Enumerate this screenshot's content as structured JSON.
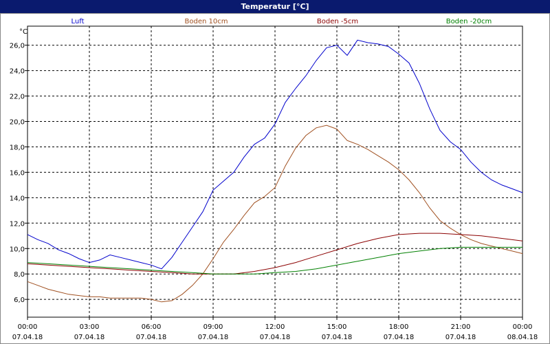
{
  "window": {
    "title": "Temperatur [°C]"
  },
  "chart_data": {
    "type": "line",
    "title": "Temperatur [°C]",
    "ylabel": "°C",
    "xlabel": "",
    "ylim": [
      4.6,
      27.5
    ],
    "xlim": [
      0,
      24
    ],
    "yticks": [
      6.0,
      8.0,
      10.0,
      12.0,
      14.0,
      16.0,
      18.0,
      20.0,
      22.0,
      24.0,
      26.0
    ],
    "ytick_labels": [
      "6,0",
      "8,0",
      "10,0",
      "12,0",
      "14,0",
      "16,0",
      "18,0",
      "20,0",
      "22,0",
      "24,0",
      "26,0"
    ],
    "xticks": [
      0,
      3,
      6,
      9,
      12,
      15,
      18,
      21,
      24
    ],
    "xtick_time": [
      "00:00",
      "03:00",
      "06:00",
      "09:00",
      "12:00",
      "15:00",
      "18:00",
      "21:00",
      "00:00"
    ],
    "xtick_date": [
      "07.04.18",
      "07.04.18",
      "07.04.18",
      "07.04.18",
      "07.04.18",
      "07.04.18",
      "07.04.18",
      "07.04.18",
      "08.04.18"
    ],
    "grid": true,
    "legend_position": "top",
    "series": [
      {
        "name": "Luft",
        "color": "#0000cc",
        "x": [
          0,
          0.5,
          1,
          1.5,
          2,
          2.5,
          3,
          3.5,
          4,
          4.5,
          5,
          5.5,
          6,
          6.5,
          7,
          7.5,
          8,
          8.5,
          9,
          9.5,
          10,
          10.5,
          11,
          11.5,
          12,
          12.5,
          13,
          13.5,
          14,
          14.5,
          15,
          15.5,
          16,
          16.5,
          17,
          17.5,
          18,
          18.5,
          19,
          19.5,
          20,
          20.5,
          21,
          21.5,
          22,
          22.5,
          23,
          23.5,
          24
        ],
        "y": [
          11.1,
          10.7,
          10.4,
          9.9,
          9.6,
          9.2,
          8.9,
          9.1,
          9.5,
          9.3,
          9.1,
          8.9,
          8.7,
          8.4,
          9.3,
          10.5,
          11.7,
          12.9,
          14.6,
          15.3,
          16.0,
          17.2,
          18.2,
          18.7,
          19.8,
          21.5,
          22.6,
          23.6,
          24.8,
          25.8,
          26.0,
          25.2,
          26.4,
          26.2,
          26.1,
          25.9,
          25.3,
          24.6,
          23.0,
          21.0,
          19.3,
          18.4,
          17.8,
          16.8,
          16.0,
          15.4,
          15.0,
          14.7,
          14.4
        ]
      },
      {
        "name": "Boden 10cm",
        "color": "#a05020",
        "x": [
          0,
          0.5,
          1,
          1.5,
          2,
          2.5,
          3,
          3.5,
          4,
          4.5,
          5,
          5.5,
          6,
          6.5,
          7,
          7.5,
          8,
          8.5,
          9,
          9.5,
          10,
          10.5,
          11,
          11.5,
          12,
          12.5,
          13,
          13.5,
          14,
          14.5,
          15,
          15.5,
          16,
          16.5,
          17,
          17.5,
          18,
          18.5,
          19,
          19.5,
          20,
          20.5,
          21,
          21.5,
          22,
          22.5,
          23,
          23.5,
          24
        ],
        "y": [
          7.4,
          7.1,
          6.8,
          6.6,
          6.4,
          6.3,
          6.2,
          6.2,
          6.1,
          6.1,
          6.1,
          6.1,
          6.0,
          5.8,
          5.9,
          6.4,
          7.1,
          8.0,
          9.2,
          10.5,
          11.5,
          12.6,
          13.6,
          14.1,
          14.8,
          16.5,
          17.9,
          18.9,
          19.5,
          19.7,
          19.4,
          18.5,
          18.2,
          17.8,
          17.3,
          16.8,
          16.2,
          15.4,
          14.4,
          13.2,
          12.2,
          11.6,
          11.1,
          10.7,
          10.4,
          10.2,
          10.0,
          9.8,
          9.6
        ]
      },
      {
        "name": "Boden -5cm",
        "color": "#8b0000",
        "x": [
          0,
          1,
          2,
          3,
          4,
          5,
          6,
          7,
          8,
          9,
          10,
          11,
          12,
          13,
          14,
          15,
          16,
          17,
          18,
          19,
          20,
          21,
          22,
          23,
          24
        ],
        "y": [
          8.8,
          8.7,
          8.6,
          8.5,
          8.4,
          8.3,
          8.2,
          8.1,
          8.0,
          8.0,
          8.0,
          8.2,
          8.5,
          8.9,
          9.4,
          9.9,
          10.4,
          10.8,
          11.1,
          11.2,
          11.2,
          11.1,
          11.0,
          10.8,
          10.6
        ]
      },
      {
        "name": "Boden -20cm",
        "color": "#008000",
        "x": [
          0,
          1,
          2,
          3,
          4,
          5,
          6,
          7,
          8,
          9,
          10,
          11,
          12,
          13,
          14,
          15,
          16,
          17,
          18,
          19,
          20,
          21,
          22,
          23,
          24
        ],
        "y": [
          8.9,
          8.8,
          8.7,
          8.6,
          8.5,
          8.4,
          8.3,
          8.2,
          8.1,
          8.0,
          8.0,
          8.0,
          8.1,
          8.2,
          8.4,
          8.7,
          9.0,
          9.3,
          9.6,
          9.8,
          10.0,
          10.1,
          10.1,
          10.1,
          10.1
        ]
      }
    ]
  }
}
